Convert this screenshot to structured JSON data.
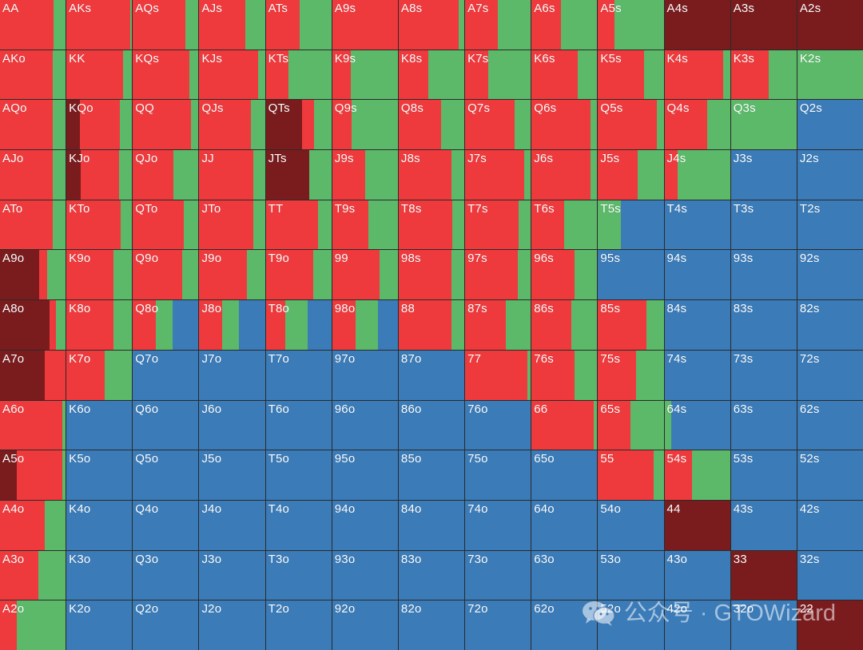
{
  "colors": {
    "raise": "#ef3a3d",
    "allin": "#7a1c1e",
    "call": "#5cb96a",
    "fold": "#3a7bb8",
    "border": "#2a2a2a"
  },
  "ranks": [
    "A",
    "K",
    "Q",
    "J",
    "T",
    "9",
    "8",
    "7",
    "6",
    "5",
    "4",
    "3",
    "2"
  ],
  "hands": [
    [
      "AA",
      "AKs",
      "AQs",
      "AJs",
      "ATs",
      "A9s",
      "A8s",
      "A7s",
      "A6s",
      "A5s",
      "A4s",
      "A3s",
      "A2s"
    ],
    [
      "AKo",
      "KK",
      "KQs",
      "KJs",
      "KTs",
      "K9s",
      "K8s",
      "K7s",
      "K6s",
      "K5s",
      "K4s",
      "K3s",
      "K2s"
    ],
    [
      "AQo",
      "KQo",
      "QQ",
      "QJs",
      "QTs",
      "Q9s",
      "Q8s",
      "Q7s",
      "Q6s",
      "Q5s",
      "Q4s",
      "Q3s",
      "Q2s"
    ],
    [
      "AJo",
      "KJo",
      "QJo",
      "JJ",
      "JTs",
      "J9s",
      "J8s",
      "J7s",
      "J6s",
      "J5s",
      "J4s",
      "J3s",
      "J2s"
    ],
    [
      "ATo",
      "KTo",
      "QTo",
      "JTo",
      "TT",
      "T9s",
      "T8s",
      "T7s",
      "T6s",
      "T5s",
      "T4s",
      "T3s",
      "T2s"
    ],
    [
      "A9o",
      "K9o",
      "Q9o",
      "J9o",
      "T9o",
      "99",
      "98s",
      "97s",
      "96s",
      "95s",
      "94s",
      "93s",
      "92s"
    ],
    [
      "A8o",
      "K8o",
      "Q8o",
      "J8o",
      "T8o",
      "98o",
      "88",
      "87s",
      "86s",
      "85s",
      "84s",
      "83s",
      "82s"
    ],
    [
      "A7o",
      "K7o",
      "Q7o",
      "J7o",
      "T7o",
      "97o",
      "87o",
      "77",
      "76s",
      "75s",
      "74s",
      "73s",
      "72s"
    ],
    [
      "A6o",
      "K6o",
      "Q6o",
      "J6o",
      "T6o",
      "96o",
      "86o",
      "76o",
      "66",
      "65s",
      "64s",
      "63s",
      "62s"
    ],
    [
      "A5o",
      "K5o",
      "Q5o",
      "J5o",
      "T5o",
      "95o",
      "85o",
      "75o",
      "65o",
      "55",
      "54s",
      "53s",
      "52s"
    ],
    [
      "A4o",
      "K4o",
      "Q4o",
      "J4o",
      "T4o",
      "94o",
      "84o",
      "74o",
      "64o",
      "54o",
      "44",
      "43s",
      "42s"
    ],
    [
      "A3o",
      "K3o",
      "Q3o",
      "J3o",
      "T3o",
      "93o",
      "83o",
      "73o",
      "63o",
      "53o",
      "43o",
      "33",
      "32s"
    ],
    [
      "A2o",
      "K2o",
      "Q2o",
      "J2o",
      "T2o",
      "92o",
      "82o",
      "72o",
      "62o",
      "52o",
      "42o",
      "32o",
      "22"
    ]
  ],
  "frequencies": [
    [
      {
        "raise": 0.82,
        "call": 0.18
      },
      {
        "raise": 0.97,
        "call": 0.03
      },
      {
        "raise": 0.8,
        "call": 0.2
      },
      {
        "raise": 0.7,
        "call": 0.3
      },
      {
        "raise": 0.52,
        "call": 0.48
      },
      {
        "raise": 1.0
      },
      {
        "raise": 0.92,
        "call": 0.08
      },
      {
        "raise": 0.5,
        "call": 0.5
      },
      {
        "raise": 0.45,
        "call": 0.55
      },
      {
        "raise": 0.25,
        "call": 0.75
      },
      {
        "allin": 1.0
      },
      {
        "allin": 1.0
      },
      {
        "allin": 1.0
      }
    ],
    [
      {
        "raise": 0.8,
        "call": 0.2
      },
      {
        "raise": 0.86,
        "call": 0.14
      },
      {
        "raise": 0.86,
        "call": 0.14
      },
      {
        "raise": 0.9,
        "call": 0.1
      },
      {
        "raise": 0.35,
        "call": 0.65
      },
      {
        "raise": 0.28,
        "call": 0.72
      },
      {
        "raise": 0.45,
        "call": 0.55
      },
      {
        "raise": 0.35,
        "call": 0.65
      },
      {
        "raise": 0.7,
        "call": 0.3
      },
      {
        "raise": 0.7,
        "call": 0.3
      },
      {
        "raise": 0.9,
        "call": 0.1
      },
      {
        "raise": 0.58,
        "call": 0.42
      },
      {
        "call": 1.0
      }
    ],
    [
      {
        "raise": 0.8,
        "call": 0.2
      },
      {
        "allin": 0.2,
        "raise": 0.62,
        "call": 0.18
      },
      {
        "raise": 0.88,
        "call": 0.12
      },
      {
        "raise": 0.78,
        "call": 0.22
      },
      {
        "allin": 0.55,
        "raise": 0.18,
        "call": 0.27
      },
      {
        "raise": 0.3,
        "call": 0.7
      },
      {
        "raise": 0.65,
        "call": 0.35
      },
      {
        "raise": 0.75,
        "call": 0.25
      },
      {
        "raise": 0.9,
        "call": 0.1
      },
      {
        "raise": 0.9,
        "call": 0.1
      },
      {
        "raise": 0.65,
        "call": 0.35
      },
      {
        "call": 1.0
      },
      {
        "fold": 1.0
      }
    ],
    [
      {
        "raise": 0.8,
        "call": 0.2
      },
      {
        "allin": 0.22,
        "raise": 0.58,
        "call": 0.2
      },
      {
        "raise": 0.62,
        "call": 0.38
      },
      {
        "raise": 0.82,
        "call": 0.18
      },
      {
        "allin": 0.66,
        "call": 0.34
      },
      {
        "raise": 0.5,
        "call": 0.5
      },
      {
        "raise": 0.8,
        "call": 0.2
      },
      {
        "raise": 0.9,
        "call": 0.1
      },
      {
        "raise": 0.9,
        "call": 0.1
      },
      {
        "raise": 0.6,
        "call": 0.4
      },
      {
        "raise": 0.2,
        "call": 0.8
      },
      {
        "fold": 1.0
      },
      {
        "fold": 1.0
      }
    ],
    [
      {
        "raise": 0.8,
        "call": 0.2
      },
      {
        "raise": 0.82,
        "call": 0.18
      },
      {
        "raise": 0.78,
        "call": 0.22
      },
      {
        "raise": 0.82,
        "call": 0.18
      },
      {
        "raise": 0.8,
        "call": 0.2
      },
      {
        "raise": 0.55,
        "call": 0.45
      },
      {
        "raise": 0.82,
        "call": 0.18
      },
      {
        "raise": 0.82,
        "call": 0.18
      },
      {
        "raise": 0.5,
        "call": 0.5
      },
      {
        "call": 0.35,
        "fold": 0.65
      },
      {
        "fold": 1.0
      },
      {
        "fold": 1.0
      },
      {
        "fold": 1.0
      }
    ],
    [
      {
        "allin": 0.6,
        "raise": 0.12,
        "call": 0.28
      },
      {
        "raise": 0.72,
        "call": 0.28
      },
      {
        "raise": 0.75,
        "call": 0.25
      },
      {
        "raise": 0.72,
        "call": 0.28
      },
      {
        "raise": 0.72,
        "call": 0.28
      },
      {
        "raise": 0.72,
        "call": 0.28
      },
      {
        "raise": 0.8,
        "call": 0.2
      },
      {
        "raise": 0.8,
        "call": 0.2
      },
      {
        "raise": 0.65,
        "call": 0.35
      },
      {
        "fold": 1.0
      },
      {
        "fold": 1.0
      },
      {
        "fold": 1.0
      },
      {
        "fold": 1.0
      }
    ],
    [
      {
        "allin": 0.75,
        "raise": 0.1,
        "call": 0.15
      },
      {
        "raise": 0.72,
        "call": 0.28
      },
      {
        "raise": 0.35,
        "call": 0.25,
        "fold": 0.4
      },
      {
        "raise": 0.35,
        "call": 0.25,
        "fold": 0.4
      },
      {
        "raise": 0.3,
        "call": 0.34,
        "fold": 0.36
      },
      {
        "raise": 0.35,
        "call": 0.35,
        "fold": 0.3
      },
      {
        "raise": 0.8,
        "call": 0.2
      },
      {
        "raise": 0.62,
        "call": 0.38
      },
      {
        "raise": 0.6,
        "call": 0.4
      },
      {
        "raise": 0.74,
        "call": 0.26
      },
      {
        "fold": 1.0
      },
      {
        "fold": 1.0
      },
      {
        "fold": 1.0
      }
    ],
    [
      {
        "allin": 0.68,
        "raise": 0.32
      },
      {
        "raise": 0.58,
        "call": 0.42
      },
      {
        "fold": 1.0
      },
      {
        "fold": 1.0
      },
      {
        "fold": 1.0
      },
      {
        "fold": 1.0
      },
      {
        "fold": 1.0
      },
      {
        "raise": 0.95,
        "call": 0.05
      },
      {
        "raise": 0.66,
        "call": 0.34
      },
      {
        "raise": 0.58,
        "call": 0.42
      },
      {
        "fold": 1.0
      },
      {
        "fold": 1.0
      },
      {
        "fold": 1.0
      }
    ],
    [
      {
        "raise": 0.95,
        "call": 0.05
      },
      {
        "fold": 1.0
      },
      {
        "fold": 1.0
      },
      {
        "fold": 1.0
      },
      {
        "fold": 1.0
      },
      {
        "fold": 1.0
      },
      {
        "fold": 1.0
      },
      {
        "fold": 1.0
      },
      {
        "raise": 0.95,
        "call": 0.05
      },
      {
        "raise": 0.5,
        "call": 0.5
      },
      {
        "call": 0.1,
        "fold": 0.9
      },
      {
        "fold": 1.0
      },
      {
        "fold": 1.0
      }
    ],
    [
      {
        "allin": 0.25,
        "raise": 0.7,
        "call": 0.05
      },
      {
        "fold": 1.0
      },
      {
        "fold": 1.0
      },
      {
        "fold": 1.0
      },
      {
        "fold": 1.0
      },
      {
        "fold": 1.0
      },
      {
        "fold": 1.0
      },
      {
        "fold": 1.0
      },
      {
        "fold": 1.0
      },
      {
        "raise": 0.85,
        "call": 0.15
      },
      {
        "raise": 0.42,
        "call": 0.58
      },
      {
        "fold": 1.0
      },
      {
        "fold": 1.0
      }
    ],
    [
      {
        "raise": 0.68,
        "call": 0.32
      },
      {
        "fold": 1.0
      },
      {
        "fold": 1.0
      },
      {
        "fold": 1.0
      },
      {
        "fold": 1.0
      },
      {
        "fold": 1.0
      },
      {
        "fold": 1.0
      },
      {
        "fold": 1.0
      },
      {
        "fold": 1.0
      },
      {
        "fold": 1.0
      },
      {
        "allin": 1.0
      },
      {
        "fold": 1.0
      },
      {
        "fold": 1.0
      }
    ],
    [
      {
        "raise": 0.58,
        "call": 0.42
      },
      {
        "fold": 1.0
      },
      {
        "fold": 1.0
      },
      {
        "fold": 1.0
      },
      {
        "fold": 1.0
      },
      {
        "fold": 1.0
      },
      {
        "fold": 1.0
      },
      {
        "fold": 1.0
      },
      {
        "fold": 1.0
      },
      {
        "fold": 1.0
      },
      {
        "fold": 1.0
      },
      {
        "allin": 1.0
      },
      {
        "fold": 1.0
      }
    ],
    [
      {
        "raise": 0.25,
        "call": 0.75
      },
      {
        "fold": 1.0
      },
      {
        "fold": 1.0
      },
      {
        "fold": 1.0
      },
      {
        "fold": 1.0
      },
      {
        "fold": 1.0
      },
      {
        "fold": 1.0
      },
      {
        "fold": 1.0
      },
      {
        "fold": 1.0
      },
      {
        "fold": 1.0
      },
      {
        "fold": 1.0
      },
      {
        "fold": 1.0
      },
      {
        "allin": 1.0
      }
    ]
  ],
  "watermark": {
    "icon": "wechat-icon",
    "text": "公众号 · GTOWizard"
  }
}
